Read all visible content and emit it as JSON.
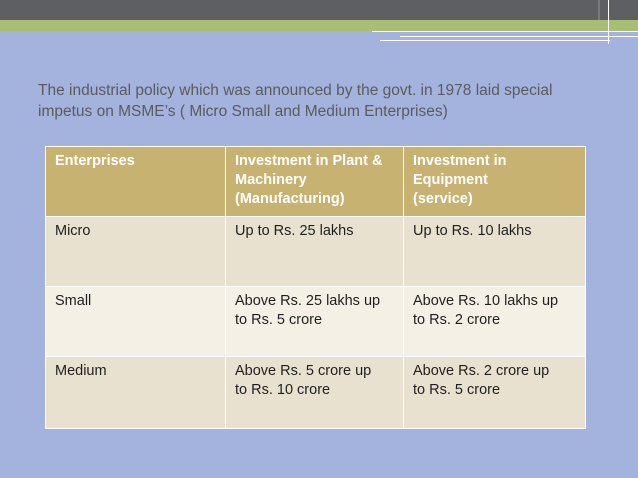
{
  "intro": {
    "line1": "The industrial policy which was announced by the govt. in 1978 laid special",
    "line2": "impetus on MSME’s ( Micro Small and Medium Enterprises)"
  },
  "table": {
    "headers": {
      "enterprises": "Enterprises",
      "plant_1": "Investment in Plant &",
      "plant_2": "Machinery",
      "plant_3": "(Manufacturing)",
      "equip_1": "Investment in",
      "equip_2": "Equipment",
      "equip_3": "(service)"
    },
    "rows": [
      {
        "name": "Micro",
        "plant_1": "Up to Rs. 25 lakhs",
        "plant_2": "",
        "equip_1": "Up to Rs. 10 lakhs",
        "equip_2": ""
      },
      {
        "name": "Small",
        "plant_1": "Above Rs. 25 lakhs up",
        "plant_2": "to Rs. 5 crore",
        "equip_1": "Above Rs. 10 lakhs up",
        "equip_2": "to Rs. 2 crore"
      },
      {
        "name": "Medium",
        "plant_1": "Above Rs. 5 crore up",
        "plant_2": "to Rs. 10 crore",
        "equip_1": "Above Rs. 2 crore up",
        "equip_2": "to Rs. 5 crore"
      }
    ]
  },
  "colors": {
    "background": "#a3b3dd",
    "header_bar": "#5e5f63",
    "accent_bar": "#a9bd75",
    "table_header": "#c8b271"
  }
}
